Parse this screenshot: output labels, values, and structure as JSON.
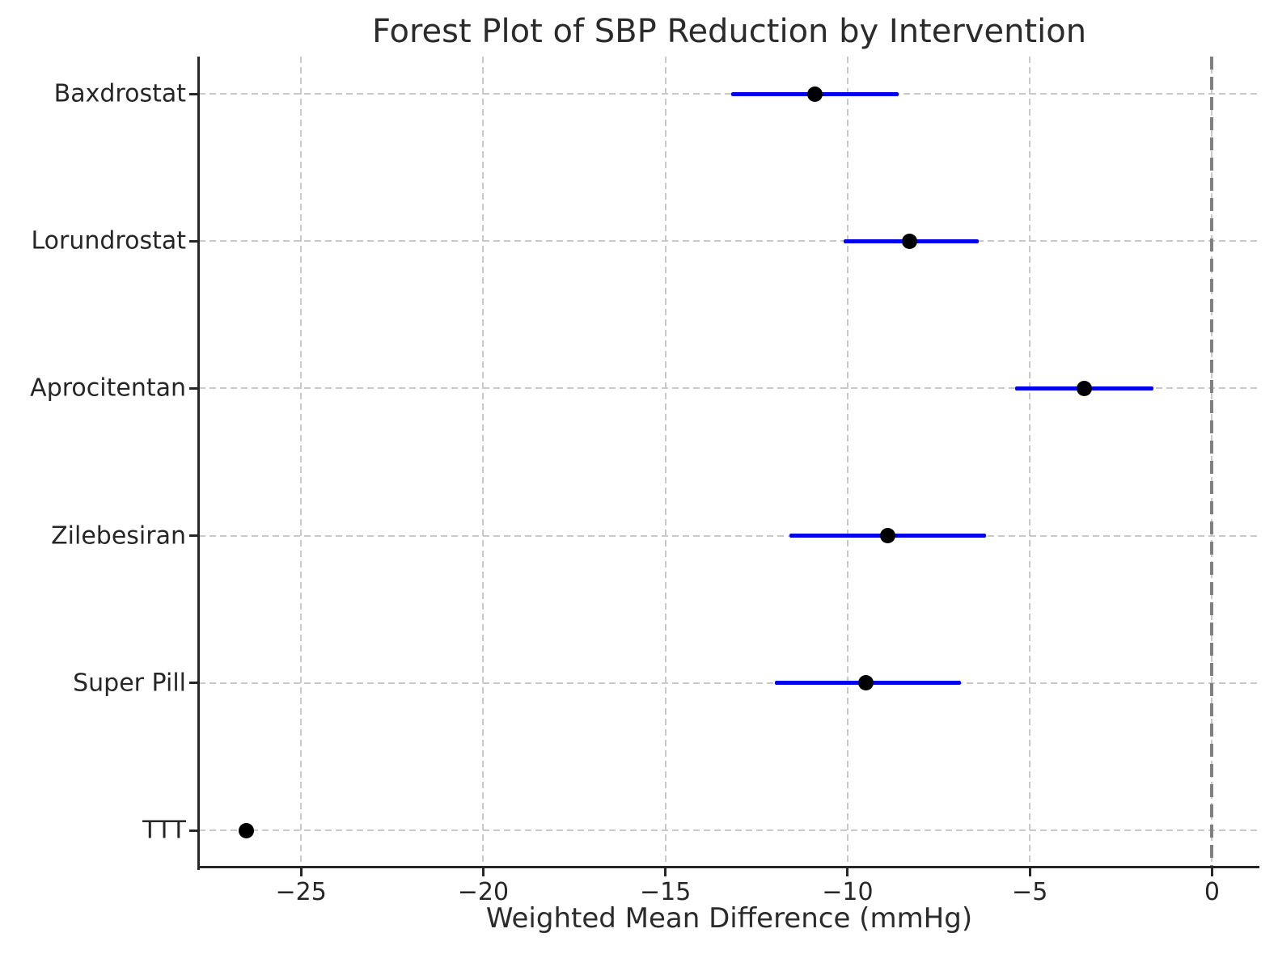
{
  "chart_data": {
    "type": "scatter",
    "subtype": "forest-plot",
    "title": "Forest Plot of SBP Reduction by Intervention",
    "xlabel": "Weighted Mean Difference (mmHg)",
    "ylabel": "",
    "categories": [
      "Baxdrostat",
      "Lorundrostat",
      "Aprocitentan",
      "Zilebesiran",
      "Super Pill",
      "TTT"
    ],
    "series": [
      {
        "name": "Weighted Mean Difference",
        "values": [
          -10.9,
          -8.3,
          -3.5,
          -8.9,
          -9.5,
          -26.5
        ],
        "ci_low": [
          -13.2,
          -10.1,
          -5.4,
          -11.6,
          -12.0,
          -26.5
        ],
        "ci_high": [
          -8.6,
          -6.4,
          -1.6,
          -6.2,
          -6.9,
          -26.5
        ]
      }
    ],
    "xlim": [
      -27.8,
      1.3
    ],
    "xticks": [
      -25,
      -20,
      -15,
      -10,
      -5,
      0
    ],
    "xtick_labels": [
      "−25",
      "−20",
      "−15",
      "−10",
      "−5",
      "0"
    ],
    "reference_line_x": 0,
    "grid": "dashed, both axes",
    "legend_position": "none",
    "colors": {
      "ci_line": "#0000ee",
      "marker": "#000000",
      "reference_line": "#808080",
      "grid": "#c9c9c9",
      "text": "#2b2b2b",
      "spine": "#262626"
    }
  }
}
